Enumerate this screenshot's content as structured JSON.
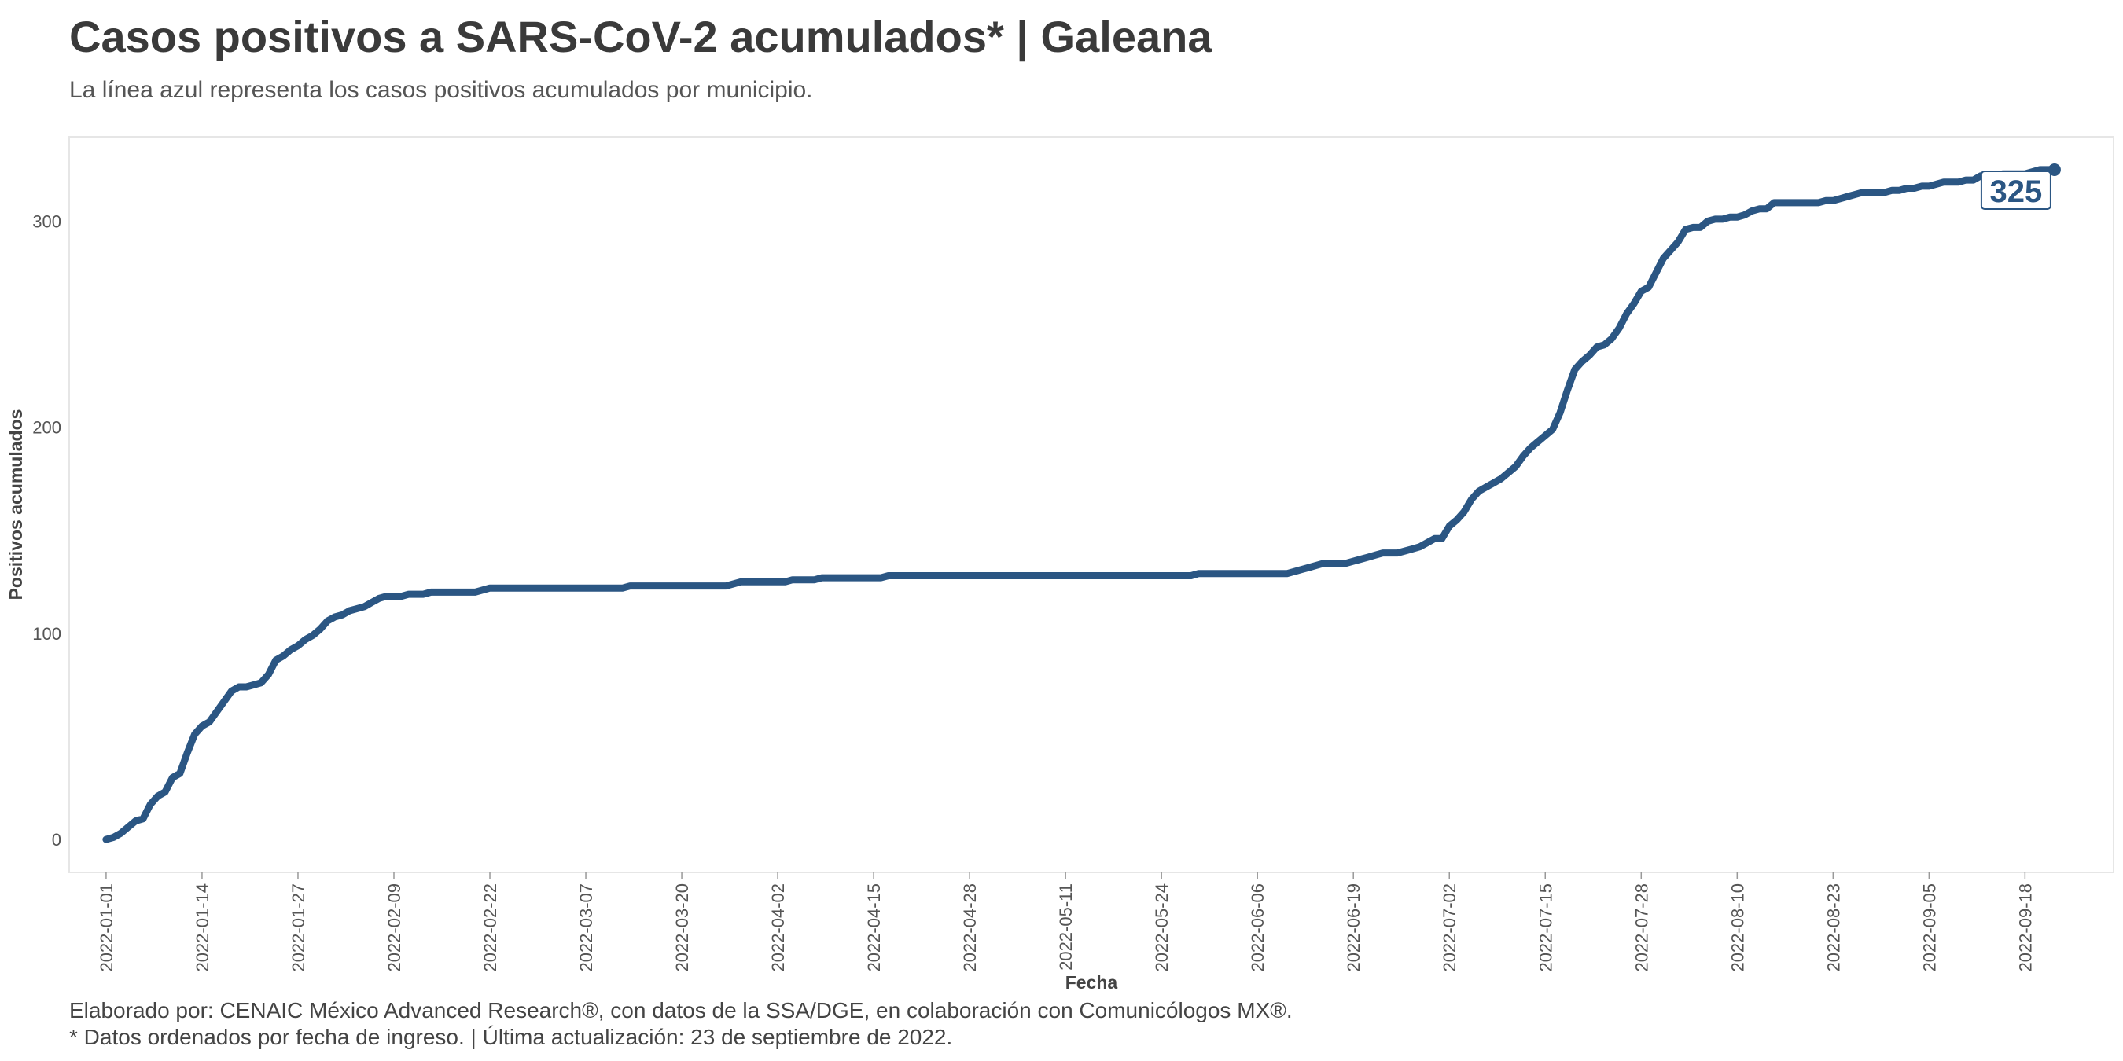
{
  "header": {
    "title": "Casos positivos a SARS-CoV-2 acumulados* | Galeana",
    "subtitle": "La línea azul representa los casos positivos acumulados por municipio."
  },
  "footer": {
    "line1": "Elaborado por: CENAIC México Advanced Research®, con datos de la SSA/DGE, en colaboración con Comunicólogos MX®.",
    "line2": "* Datos ordenados por fecha de ingreso. | Última actualización: 23 de septiembre de 2022."
  },
  "colors": {
    "line": "#2b5683",
    "panel_border": "#e6e6e6"
  },
  "chart_data": {
    "type": "line",
    "xlabel": "Fecha",
    "ylabel": "Positivos acumulados",
    "x_ticks": [
      "2022-01-01",
      "2022-01-14",
      "2022-01-27",
      "2022-02-09",
      "2022-02-22",
      "2022-03-07",
      "2022-03-20",
      "2022-04-02",
      "2022-04-15",
      "2022-04-28",
      "2022-05-11",
      "2022-05-24",
      "2022-06-06",
      "2022-06-19",
      "2022-07-02",
      "2022-07-15",
      "2022-07-28",
      "2022-08-10",
      "2022-08-23",
      "2022-09-05",
      "2022-09-18"
    ],
    "y_ticks": [
      0,
      100,
      200,
      300
    ],
    "xlim": [
      "2021-12-27",
      "2022-09-30"
    ],
    "ylim": [
      -16,
      341
    ],
    "grid": false,
    "end_label": "325",
    "series": [
      {
        "points": [
          [
            "2022-01-01",
            0
          ],
          [
            "2022-01-02",
            1
          ],
          [
            "2022-01-03",
            3
          ],
          [
            "2022-01-04",
            6
          ],
          [
            "2022-01-05",
            9
          ],
          [
            "2022-01-06",
            10
          ],
          [
            "2022-01-07",
            17
          ],
          [
            "2022-01-08",
            21
          ],
          [
            "2022-01-09",
            23
          ],
          [
            "2022-01-10",
            30
          ],
          [
            "2022-01-11",
            32
          ],
          [
            "2022-01-12",
            42
          ],
          [
            "2022-01-13",
            51
          ],
          [
            "2022-01-14",
            55
          ],
          [
            "2022-01-15",
            57
          ],
          [
            "2022-01-16",
            62
          ],
          [
            "2022-01-17",
            67
          ],
          [
            "2022-01-18",
            72
          ],
          [
            "2022-01-19",
            74
          ],
          [
            "2022-01-20",
            74
          ],
          [
            "2022-01-21",
            75
          ],
          [
            "2022-01-22",
            76
          ],
          [
            "2022-01-23",
            80
          ],
          [
            "2022-01-24",
            87
          ],
          [
            "2022-01-25",
            89
          ],
          [
            "2022-01-26",
            92
          ],
          [
            "2022-01-27",
            94
          ],
          [
            "2022-01-28",
            97
          ],
          [
            "2022-01-29",
            99
          ],
          [
            "2022-01-30",
            102
          ],
          [
            "2022-01-31",
            106
          ],
          [
            "2022-02-01",
            108
          ],
          [
            "2022-02-02",
            109
          ],
          [
            "2022-02-03",
            111
          ],
          [
            "2022-02-04",
            112
          ],
          [
            "2022-02-05",
            113
          ],
          [
            "2022-02-06",
            115
          ],
          [
            "2022-02-07",
            117
          ],
          [
            "2022-02-08",
            118
          ],
          [
            "2022-02-09",
            118
          ],
          [
            "2022-02-10",
            118
          ],
          [
            "2022-02-11",
            119
          ],
          [
            "2022-02-12",
            119
          ],
          [
            "2022-02-13",
            119
          ],
          [
            "2022-02-14",
            120
          ],
          [
            "2022-02-20",
            120
          ],
          [
            "2022-02-21",
            121
          ],
          [
            "2022-02-22",
            122
          ],
          [
            "2022-03-12",
            122
          ],
          [
            "2022-03-13",
            123
          ],
          [
            "2022-03-26",
            123
          ],
          [
            "2022-03-27",
            124
          ],
          [
            "2022-03-28",
            125
          ],
          [
            "2022-04-03",
            125
          ],
          [
            "2022-04-04",
            126
          ],
          [
            "2022-04-07",
            126
          ],
          [
            "2022-04-08",
            127
          ],
          [
            "2022-04-16",
            127
          ],
          [
            "2022-04-17",
            128
          ],
          [
            "2022-05-28",
            128
          ],
          [
            "2022-05-29",
            129
          ],
          [
            "2022-06-09",
            129
          ],
          [
            "2022-06-10",
            129
          ],
          [
            "2022-06-11",
            130
          ],
          [
            "2022-06-12",
            131
          ],
          [
            "2022-06-13",
            132
          ],
          [
            "2022-06-14",
            133
          ],
          [
            "2022-06-15",
            134
          ],
          [
            "2022-06-18",
            134
          ],
          [
            "2022-06-19",
            135
          ],
          [
            "2022-06-20",
            136
          ],
          [
            "2022-06-21",
            137
          ],
          [
            "2022-06-22",
            138
          ],
          [
            "2022-06-23",
            139
          ],
          [
            "2022-06-25",
            139
          ],
          [
            "2022-06-26",
            140
          ],
          [
            "2022-06-27",
            141
          ],
          [
            "2022-06-28",
            142
          ],
          [
            "2022-06-29",
            144
          ],
          [
            "2022-06-30",
            146
          ],
          [
            "2022-07-01",
            146
          ],
          [
            "2022-07-02",
            152
          ],
          [
            "2022-07-03",
            155
          ],
          [
            "2022-07-04",
            159
          ],
          [
            "2022-07-05",
            165
          ],
          [
            "2022-07-06",
            169
          ],
          [
            "2022-07-07",
            171
          ],
          [
            "2022-07-08",
            173
          ],
          [
            "2022-07-09",
            175
          ],
          [
            "2022-07-10",
            178
          ],
          [
            "2022-07-11",
            181
          ],
          [
            "2022-07-12",
            186
          ],
          [
            "2022-07-13",
            190
          ],
          [
            "2022-07-14",
            193
          ],
          [
            "2022-07-15",
            196
          ],
          [
            "2022-07-16",
            199
          ],
          [
            "2022-07-17",
            207
          ],
          [
            "2022-07-18",
            218
          ],
          [
            "2022-07-19",
            228
          ],
          [
            "2022-07-20",
            232
          ],
          [
            "2022-07-21",
            235
          ],
          [
            "2022-07-22",
            239
          ],
          [
            "2022-07-23",
            240
          ],
          [
            "2022-07-24",
            243
          ],
          [
            "2022-07-25",
            248
          ],
          [
            "2022-07-26",
            255
          ],
          [
            "2022-07-27",
            260
          ],
          [
            "2022-07-28",
            266
          ],
          [
            "2022-07-29",
            268
          ],
          [
            "2022-07-30",
            275
          ],
          [
            "2022-07-31",
            282
          ],
          [
            "2022-08-01",
            286
          ],
          [
            "2022-08-02",
            290
          ],
          [
            "2022-08-03",
            296
          ],
          [
            "2022-08-04",
            297
          ],
          [
            "2022-08-05",
            297
          ],
          [
            "2022-08-06",
            300
          ],
          [
            "2022-08-07",
            301
          ],
          [
            "2022-08-08",
            301
          ],
          [
            "2022-08-09",
            302
          ],
          [
            "2022-08-10",
            302
          ],
          [
            "2022-08-11",
            303
          ],
          [
            "2022-08-12",
            305
          ],
          [
            "2022-08-13",
            306
          ],
          [
            "2022-08-14",
            306
          ],
          [
            "2022-08-15",
            309
          ],
          [
            "2022-08-21",
            309
          ],
          [
            "2022-08-22",
            310
          ],
          [
            "2022-08-23",
            310
          ],
          [
            "2022-08-24",
            311
          ],
          [
            "2022-08-25",
            312
          ],
          [
            "2022-08-26",
            313
          ],
          [
            "2022-08-27",
            314
          ],
          [
            "2022-08-30",
            314
          ],
          [
            "2022-08-31",
            315
          ],
          [
            "2022-09-01",
            315
          ],
          [
            "2022-09-02",
            316
          ],
          [
            "2022-09-03",
            316
          ],
          [
            "2022-09-04",
            317
          ],
          [
            "2022-09-05",
            317
          ],
          [
            "2022-09-06",
            318
          ],
          [
            "2022-09-07",
            319
          ],
          [
            "2022-09-09",
            319
          ],
          [
            "2022-09-10",
            320
          ],
          [
            "2022-09-11",
            320
          ],
          [
            "2022-09-12",
            322
          ],
          [
            "2022-09-14",
            322
          ],
          [
            "2022-09-15",
            323
          ],
          [
            "2022-09-18",
            323
          ],
          [
            "2022-09-19",
            324
          ],
          [
            "2022-09-20",
            325
          ],
          [
            "2022-09-22",
            325
          ]
        ]
      }
    ]
  }
}
